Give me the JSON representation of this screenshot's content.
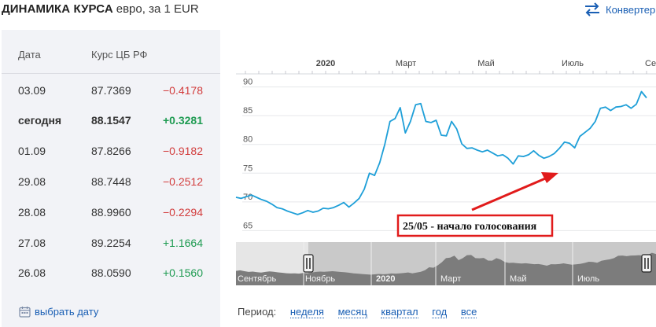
{
  "header": {
    "title": "ДИНАМИКА КУРСА",
    "subtitle": "евро, за 1 EUR",
    "converter_label": "Конвертер"
  },
  "table": {
    "col_date": "Дата",
    "col_rate": "Курс ЦБ РФ",
    "rows": [
      {
        "date": "03.09",
        "rate": "87.7369",
        "change": "−0.4178",
        "dir": "neg",
        "bold": false
      },
      {
        "date": "сегодня",
        "rate": "88.1547",
        "change": "+0.3281",
        "dir": "pos",
        "bold": true
      },
      {
        "date": "01.09",
        "rate": "87.8266",
        "change": "−0.9182",
        "dir": "neg",
        "bold": false
      },
      {
        "date": "29.08",
        "rate": "88.7448",
        "change": "−0.2512",
        "dir": "neg",
        "bold": false
      },
      {
        "date": "28.08",
        "rate": "88.9960",
        "change": "−0.2294",
        "dir": "neg",
        "bold": false
      },
      {
        "date": "27.08",
        "rate": "89.2254",
        "change": "+1.1664",
        "dir": "pos",
        "bold": false
      },
      {
        "date": "26.08",
        "rate": "88.0590",
        "change": "+0.1560",
        "dir": "pos",
        "bold": false
      }
    ],
    "pick_date_label": "выбрать дату"
  },
  "period": {
    "label": "Период:",
    "options": [
      "неделя",
      "месяц",
      "квартал",
      "год",
      "все"
    ]
  },
  "colors": {
    "line": "#1e9fd8",
    "accent_link": "#1a5fb4",
    "neg": "#d23c3c",
    "pos": "#1f9b52",
    "annotation_red": "#e11b1b"
  },
  "chart_data": {
    "type": "line",
    "top_axis_labels": [
      "2020",
      "Март",
      "Май",
      "Июль",
      "Се"
    ],
    "y_ticks": [
      65,
      70,
      75,
      80,
      85,
      90
    ],
    "ylim": [
      63,
      92
    ],
    "annotation": "25/05 - начало голосования",
    "navigator_labels": [
      "Сентябрь",
      "Ноябрь",
      "2020",
      "Март",
      "Май",
      "Июль"
    ],
    "series": [
      {
        "values": [
          70.8,
          70.6,
          70.9,
          71.2,
          70.8,
          70.4,
          70.1,
          69.6,
          69.0,
          68.8,
          68.4,
          68.1,
          67.8,
          68.1,
          68.5,
          68.2,
          68.4,
          68.9,
          68.8,
          69.0,
          69.4,
          69.9,
          69.1,
          69.8,
          70.6,
          72.2,
          75.0,
          74.6,
          76.8,
          80.0,
          84.0,
          84.5,
          86.4,
          82.0,
          84.0,
          86.9,
          87.1,
          84.0,
          83.8,
          84.2,
          81.6,
          81.5,
          84.0,
          82.7,
          80.1,
          79.3,
          79.4,
          79.0,
          78.7,
          79.0,
          78.5,
          78.0,
          78.2,
          77.6,
          76.6,
          78.0,
          77.9,
          78.2,
          78.9,
          78.1,
          77.6,
          77.9,
          78.4,
          79.3,
          80.4,
          80.2,
          79.4,
          81.4,
          82.1,
          82.8,
          84.0,
          86.3,
          86.5,
          85.9,
          86.5,
          86.6,
          86.9,
          86.3,
          87.0,
          89.2,
          88.1
        ]
      }
    ]
  }
}
